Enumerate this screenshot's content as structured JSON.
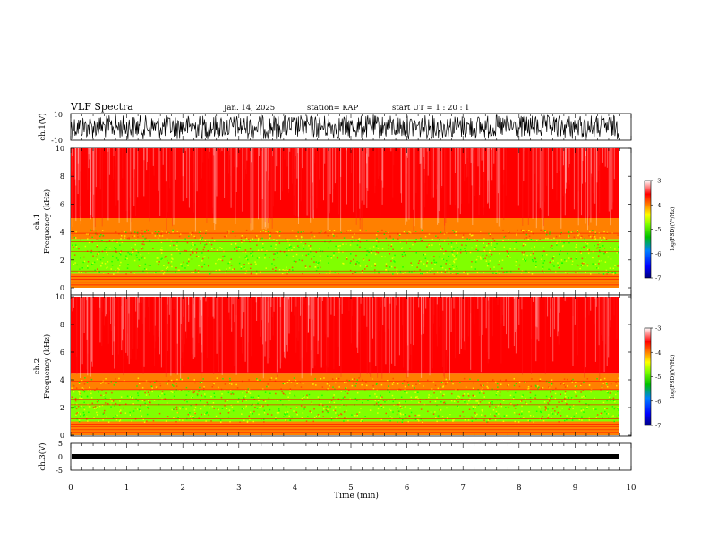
{
  "header": {
    "title": "VLF Spectra",
    "date": "Jan. 14, 2025",
    "station": "station= KAP",
    "start": "start  UT =   1 : 20 : 1"
  },
  "colors": {
    "spectrogram_scale": [
      "#000080",
      "#0000ff",
      "#0080ff",
      "#00c000",
      "#80ff00",
      "#ffff00",
      "#ff8000",
      "#ff0000",
      "#ffffff"
    ],
    "trace": "#000000"
  },
  "chart_data": [
    {
      "type": "line",
      "panel": "ch1-waveform",
      "ylabel": "ch.1(V)",
      "ylim": [
        -10,
        10
      ],
      "yticks": [
        "10",
        "-10"
      ],
      "x": [
        0,
        9.8
      ],
      "description_of_values": "broadband noisy waveform filling most of the range"
    },
    {
      "type": "heatmap",
      "panel": "ch1-spectrogram",
      "ylabel": "ch.1\nFrequency (kHz)",
      "ylim": [
        0,
        10
      ],
      "yticks": [
        "0",
        "2",
        "4",
        "6",
        "8",
        "10"
      ],
      "xlim": [
        0,
        10
      ],
      "colorbar": {
        "label": "log(PSD)(V²/Hz)",
        "range": [
          -7,
          -3
        ],
        "ticks": [
          "-3",
          "-4",
          "-5",
          "-6",
          "-7"
        ]
      },
      "bands": [
        {
          "f_range": [
            0,
            1
          ],
          "logpsd": -4,
          "color": "red/yellow"
        },
        {
          "f_range": [
            1,
            3.5
          ],
          "logpsd": -5,
          "color": "green/yellow"
        },
        {
          "f_range": [
            3.5,
            5
          ],
          "logpsd": -4,
          "color": "red/yellow"
        },
        {
          "f_range": [
            5,
            10
          ],
          "logpsd": -3.5,
          "color": "red/white"
        }
      ]
    },
    {
      "type": "heatmap",
      "panel": "ch2-spectrogram",
      "ylabel": "ch.2\nFrequency (kHz)",
      "ylim": [
        0,
        10
      ],
      "yticks": [
        "0",
        "2",
        "4",
        "6",
        "8",
        "10"
      ],
      "xlim": [
        0,
        10
      ],
      "colorbar": {
        "label": "log(PSD)(V²/Hz)",
        "range": [
          -7,
          -3
        ],
        "ticks": [
          "-3",
          "-4",
          "-5",
          "-6",
          "-7"
        ]
      },
      "bands": [
        {
          "f_range": [
            0,
            1
          ],
          "logpsd": -4,
          "color": "red/yellow"
        },
        {
          "f_range": [
            1,
            3.3
          ],
          "logpsd": -5,
          "color": "green/yellow"
        },
        {
          "f_range": [
            3.3,
            4.5
          ],
          "logpsd": -4,
          "color": "red/yellow"
        },
        {
          "f_range": [
            4.5,
            10
          ],
          "logpsd": -3.5,
          "color": "red/white"
        }
      ]
    },
    {
      "type": "line",
      "panel": "ch3-waveform",
      "ylabel": "ch.3(V)",
      "ylim": [
        -5,
        5
      ],
      "yticks": [
        "5",
        "0",
        "-5"
      ],
      "x": [
        0,
        9.8
      ],
      "description_of_values": "narrow band near -1 V"
    }
  ],
  "xaxis": {
    "label": "Time (min)",
    "ticks": [
      "0",
      "1",
      "2",
      "3",
      "4",
      "5",
      "6",
      "7",
      "8",
      "9",
      "10"
    ]
  }
}
